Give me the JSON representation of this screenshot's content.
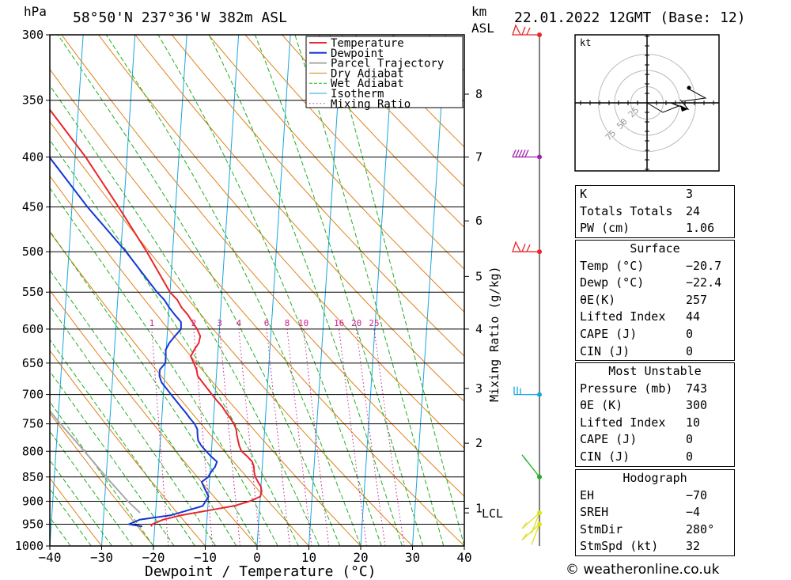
{
  "header": {
    "pressure_unit": "hPa",
    "location": "58°50'N  237°36'W  382m  ASL",
    "km_label": "km",
    "asl_label": "ASL",
    "datetime": "22.01.2022  12GMT  (Base: 12)"
  },
  "colors": {
    "temperature": "#e8262c",
    "dewpoint": "#1436d6",
    "parcel": "#a8a8a8",
    "dry_adiabat": "#e0801a",
    "wet_adiabat": "#22b022",
    "isotherm": "#1aa6e0",
    "mixing_ratio": "#cc2090"
  },
  "chart_data": {
    "type": "line",
    "title": "Skew-T log-P diagram",
    "xlabel": "Dewpoint / Temperature (°C)",
    "ylabel": "hPa",
    "y2label": "Mixing Ratio (g/kg)",
    "xlim": [
      -40,
      40
    ],
    "ylim": [
      1000,
      300
    ],
    "x_ticks": [
      -40,
      -30,
      -20,
      -10,
      0,
      10,
      20,
      30,
      40
    ],
    "x_tick_labels": [
      "−40",
      "−30",
      "−20",
      "−10",
      "0",
      "10",
      "20",
      "30",
      "40"
    ],
    "pressure_levels": [
      300,
      350,
      400,
      450,
      500,
      550,
      600,
      650,
      700,
      750,
      800,
      850,
      900,
      950,
      1000
    ],
    "km_ticks": [
      {
        "km": "1",
        "p": 915
      },
      {
        "km": "2",
        "p": 785
      },
      {
        "km": "3",
        "p": 690
      },
      {
        "km": "4",
        "p": 600
      },
      {
        "km": "5",
        "p": 530
      },
      {
        "km": "6",
        "p": 465
      },
      {
        "km": "7",
        "p": 400
      },
      {
        "km": "8",
        "p": 345
      }
    ],
    "lcl": {
      "label": "LCL",
      "p": 925
    },
    "mixing_ratio_labels": [
      "1",
      "2",
      "3",
      "4",
      "6",
      "8",
      "10",
      "16",
      "20",
      "25"
    ],
    "legend": [
      "Temperature",
      "Dewpoint",
      "Parcel Trajectory",
      "Dry Adiabat",
      "Wet Adiabat",
      "Isotherm",
      "Mixing Ratio"
    ],
    "legend_position": "top-center",
    "series": [
      {
        "name": "Temperature",
        "p": [
          955,
          950,
          940,
          930,
          920,
          910,
          900,
          895,
          890,
          880,
          870,
          860,
          850,
          840,
          830,
          820,
          810,
          800,
          790,
          780,
          770,
          760,
          750,
          740,
          730,
          720,
          710,
          700,
          690,
          680,
          670,
          660,
          650,
          640,
          630,
          620,
          610,
          600,
          590,
          580,
          570,
          560,
          550,
          500,
          450,
          400,
          350,
          300
        ],
        "t": [
          -20.7,
          -20.5,
          -18.5,
          -15.0,
          -10.0,
          -5.0,
          -2.0,
          -1.0,
          0.0,
          0.2,
          0.0,
          -0.6,
          -1.2,
          -1.5,
          -1.6,
          -2.0,
          -3.0,
          -4.2,
          -4.7,
          -5.0,
          -5.3,
          -5.5,
          -6.0,
          -6.8,
          -7.7,
          -8.5,
          -9.6,
          -10.6,
          -11.6,
          -12.6,
          -13.6,
          -13.9,
          -14.5,
          -15.2,
          -14.6,
          -13.8,
          -13.6,
          -14.3,
          -15.3,
          -16.3,
          -17.6,
          -18.5,
          -20.0,
          -25.0,
          -31.0,
          -38.0,
          -47.0,
          -57.0
        ]
      },
      {
        "name": "Dewpoint",
        "p": [
          955,
          950,
          940,
          930,
          920,
          910,
          900,
          890,
          880,
          870,
          860,
          850,
          840,
          830,
          820,
          810,
          800,
          790,
          780,
          770,
          760,
          750,
          740,
          730,
          720,
          710,
          700,
          690,
          680,
          670,
          660,
          650,
          640,
          630,
          620,
          610,
          600,
          590,
          580,
          570,
          560,
          550,
          500,
          450,
          400,
          350,
          300
        ],
        "t": [
          -22.4,
          -25.0,
          -23.0,
          -17.0,
          -14.0,
          -11.0,
          -10.5,
          -10.0,
          -10.5,
          -11.0,
          -11.5,
          -10.3,
          -9.8,
          -9.1,
          -8.8,
          -10.0,
          -11.0,
          -12.0,
          -12.7,
          -12.9,
          -13.0,
          -13.6,
          -14.6,
          -15.5,
          -16.5,
          -17.5,
          -18.5,
          -19.5,
          -20.5,
          -21.0,
          -21.0,
          -20.0,
          -20.0,
          -20.1,
          -19.5,
          -18.5,
          -17.4,
          -17.5,
          -18.8,
          -20.0,
          -21.0,
          -22.5,
          -29.0,
          -37.0,
          -45.0,
          -55.0,
          -65.0
        ]
      },
      {
        "name": "Parcel Trajectory",
        "p": [
          925,
          900,
          850,
          800,
          750,
          700,
          650,
          600,
          550,
          505
        ],
        "t": [
          -23.0,
          -25.5,
          -30.0,
          -34.5,
          -39.5,
          -44.5,
          -50.0,
          -56.0,
          -62.5,
          -69.0
        ]
      }
    ],
    "wind_barbs": [
      {
        "p": 300,
        "color": "#e8262c"
      },
      {
        "p": 400,
        "color": "#a020b0"
      },
      {
        "p": 500,
        "color": "#e8262c"
      },
      {
        "p": 700,
        "color": "#1aa6e0"
      },
      {
        "p": 850,
        "color": "#22b022"
      },
      {
        "p": 925,
        "color": "#e0e020"
      },
      {
        "p": 950,
        "color": "#e0e020"
      }
    ],
    "hodograph": {
      "unit_label": "kt",
      "ring_labels": [
        "25",
        "50",
        "75"
      ]
    }
  },
  "indices": {
    "rows": [
      {
        "label": "K",
        "value": "3"
      },
      {
        "label": "Totals Totals",
        "value": "24"
      },
      {
        "label": "PW (cm)",
        "value": "1.06"
      }
    ]
  },
  "surface": {
    "title": "Surface",
    "rows": [
      {
        "label": "Temp (°C)",
        "value": "−20.7"
      },
      {
        "label": "Dewp (°C)",
        "value": "−22.4"
      },
      {
        "label": "θE(K)",
        "value": "257"
      },
      {
        "label": "Lifted Index",
        "value": "44"
      },
      {
        "label": "CAPE (J)",
        "value": "0"
      },
      {
        "label": "CIN (J)",
        "value": "0"
      }
    ]
  },
  "most_unstable": {
    "title": "Most Unstable",
    "rows": [
      {
        "label": "Pressure (mb)",
        "value": "743"
      },
      {
        "label": "θE (K)",
        "value": "300"
      },
      {
        "label": "Lifted Index",
        "value": "10"
      },
      {
        "label": "CAPE (J)",
        "value": "0"
      },
      {
        "label": "CIN (J)",
        "value": "0"
      }
    ]
  },
  "hodograph_stats": {
    "title": "Hodograph",
    "rows": [
      {
        "label": "EH",
        "value": "−70"
      },
      {
        "label": "SREH",
        "value": "−4"
      },
      {
        "label": "StmDir",
        "value": "280°"
      },
      {
        "label": "StmSpd (kt)",
        "value": "32"
      }
    ]
  },
  "footer": {
    "credit": "© weatheronline.co.uk"
  }
}
